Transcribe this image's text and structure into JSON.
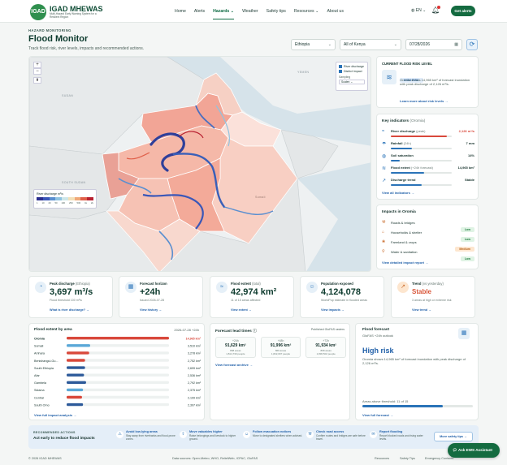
{
  "nav": {
    "logo_text": "IGAD",
    "brand": "IGAD MHEWAS",
    "tagline": "Multi-Hazard Early Warning System for a Resilient Region",
    "links": [
      "Home",
      "Alerts",
      "Hazards",
      "Weather",
      "Safety tips",
      "Resources",
      "About us"
    ],
    "active": "Hazards",
    "language": "EN",
    "cta": "Get alerts"
  },
  "page": {
    "kicker": "HAZARD MONITORING",
    "title": "Flood Monitor",
    "subtitle": "Track flood risk, river levels, impacts and recommended actions."
  },
  "filters": {
    "country": "Ethiopia",
    "region": "All of Kenya",
    "date": "07/28/2026"
  },
  "map": {
    "labels": [
      "YEMEN",
      "SUDAN",
      "SOUTH SUDAN",
      "Somali"
    ],
    "layers": [
      {
        "label": "River discharge",
        "checked": true
      },
      {
        "label": "District impact",
        "checked": true
      }
    ],
    "sampling_label": "Sampling",
    "sampling_value": "Scalen",
    "legend_title": "River discharge m³/s",
    "legend_ticks": [
      "1",
      "10",
      "20",
      "50",
      "100",
      "250",
      "500",
      "1k",
      "2k"
    ],
    "legend_colors": [
      "#2b2f8f",
      "#3a57b8",
      "#5a8fd0",
      "#8fc3e0",
      "#cde6e8",
      "#f3e0b8",
      "#f0a878",
      "#e0604a",
      "#b82030"
    ]
  },
  "risk": {
    "heading": "CURRENT FLOOD RISK LEVEL",
    "level": "HIGH RISK",
    "text": "Oromia shows 14,965 km² of forecast inundation with peak discharge of 2,126 m³/s.",
    "link": "Learn more about risk levels"
  },
  "indicators": {
    "heading": "Key indicators",
    "region": "(Oromia)",
    "items": [
      {
        "label": "River discharge",
        "qual": "(peak)",
        "value": "2,126 m³/s",
        "level": 0.92,
        "color": "#d9483b"
      },
      {
        "label": "Rainfall",
        "qual": "(24h)",
        "value": "7 mm",
        "level": 0.35,
        "color": "#2a73b8"
      },
      {
        "label": "Soil saturation",
        "qual": "",
        "value": "14%",
        "level": 0.14,
        "color": "#2a73b8"
      },
      {
        "label": "Flood extent",
        "qual": "(+24h forecast)",
        "value": "14,965 km²",
        "level": 0.55,
        "color": "#2a73b8"
      },
      {
        "label": "Discharge trend",
        "qual": "",
        "value": "Stable",
        "level": 0.5,
        "color": "#2a73b8"
      }
    ],
    "link": "View all indicators"
  },
  "impacts": {
    "heading": "Impacts in Oromia",
    "items": [
      {
        "label": "Roads & bridges",
        "status": "Low"
      },
      {
        "label": "Households & shelter",
        "status": "Low"
      },
      {
        "label": "Farmland & crops",
        "status": "Medium"
      },
      {
        "label": "Water & sanitation",
        "status": "Low"
      }
    ],
    "link": "View detailed impact report"
  },
  "kpis": [
    {
      "label": "Peak discharge",
      "qual": "(Ethiopia)",
      "value": "3,697 m³/s",
      "note": "Flood threshold 100 m³/s",
      "link": "What is river discharge?",
      "icon": "◔"
    },
    {
      "label": "Forecast horizon",
      "qual": "",
      "value": "+24h",
      "note": "Issued 2026-07-28",
      "link": "View history",
      "icon": "▦"
    },
    {
      "label": "Flood extent",
      "qual": "(total)",
      "value": "42,974 km²",
      "note": "11 of 15 areas affected",
      "link": "View extent",
      "icon": "≈"
    },
    {
      "label": "Population exposed",
      "qual": "",
      "value": "4,124,078",
      "note": "WorldPop estimate in flooded areas",
      "link": "View impacts",
      "icon": "☺"
    },
    {
      "label": "Trend",
      "qual": "(vs yesterday)",
      "value": "Stable",
      "note": "3 areas at high or extreme risk",
      "link": "View trend",
      "icon": "↗"
    }
  ],
  "extent": {
    "heading": "Flood extent by area",
    "date": "2026-07-28 +24h",
    "rows": [
      {
        "name": "Oromia",
        "value": "14,965 km²",
        "frac": 1.0,
        "color": "#d9483b"
      },
      {
        "name": "Somali",
        "value": "3,510 km²",
        "frac": 0.23,
        "color": "#5aa8d8"
      },
      {
        "name": "Amhara",
        "value": "3,278 km²",
        "frac": 0.22,
        "color": "#d9483b"
      },
      {
        "name": "Benishangul-Gu...",
        "value": "2,752 km²",
        "frac": 0.18,
        "color": "#d9483b"
      },
      {
        "name": "South Ethiopia",
        "value": "2,699 km²",
        "frac": 0.18,
        "color": "#2d5a9a"
      },
      {
        "name": "Afar",
        "value": "2,536 km²",
        "frac": 0.17,
        "color": "#2d5a9a"
      },
      {
        "name": "Gambela",
        "value": "2,792 km²",
        "frac": 0.19,
        "color": "#2d5a9a"
      },
      {
        "name": "Sidama",
        "value": "2,375 km²",
        "frac": 0.16,
        "color": "#5aa8d8"
      },
      {
        "name": "Central",
        "value": "2,199 km²",
        "frac": 0.15,
        "color": "#d9483b"
      },
      {
        "name": "South Omo",
        "value": "2,397 km²",
        "frac": 0.16,
        "color": "#2d5a9a"
      }
    ],
    "link": "View full impact analysis"
  },
  "leadtimes": {
    "heading": "Forecast lead times",
    "source": "Published GloFAS rasters",
    "items": [
      {
        "lead": "+24h",
        "value": "91,629 km²",
        "n": "868 areas",
        "s": "1,814,730 people"
      },
      {
        "lead": "+48h",
        "value": "91,996 km²",
        "n": "869 areas",
        "s": "1,822,097 people"
      },
      {
        "lead": "+72h",
        "value": "91,934 km²",
        "n": "868 areas",
        "s": "1,836,502 people"
      }
    ],
    "link": "View forecast archive"
  },
  "forecast": {
    "heading": "Flood forecast",
    "sub": "GloFAS +24h outlook",
    "level": "High risk",
    "text": "Oromia shows 14,965 km² of forecast inundation with peak discharge of 2,126 m³/s.",
    "threshold_label": "Areas above threshold: 11 of 15",
    "threshold_frac": 0.73,
    "link": "View full forecast"
  },
  "actions": {
    "kicker": "RECOMMENDED ACTIONS",
    "title": "Act early to reduce flood impacts",
    "items": [
      {
        "t": "Avoid low-lying areas",
        "d": "Stay away from riverbanks and flood-prone zones.",
        "icon": "⚠"
      },
      {
        "t": "Move valuables higher",
        "d": "Raise belongings and livestock to higher ground.",
        "icon": "⇧"
      },
      {
        "t": "Follow evacuation notices",
        "d": "Move to designated shelters when advised.",
        "icon": "☺"
      },
      {
        "t": "Check road access",
        "d": "Confirm routes and bridges are safe before travel.",
        "icon": "⚒"
      },
      {
        "t": "Report flooding",
        "d": "Report blocked roads and rising water levels.",
        "icon": "✉"
      }
    ],
    "more": "More safety tips"
  },
  "assistant": "Ask EWS Assistant",
  "footer": {
    "copy": "© 2026 IGAD MHEWAS",
    "sources": "Data sources: Open-Meteo, WHO, ReliefWeb, ICPAC, GloFAS",
    "links": [
      "Resources",
      "Safety Tips",
      "Emergency Contacts"
    ]
  }
}
